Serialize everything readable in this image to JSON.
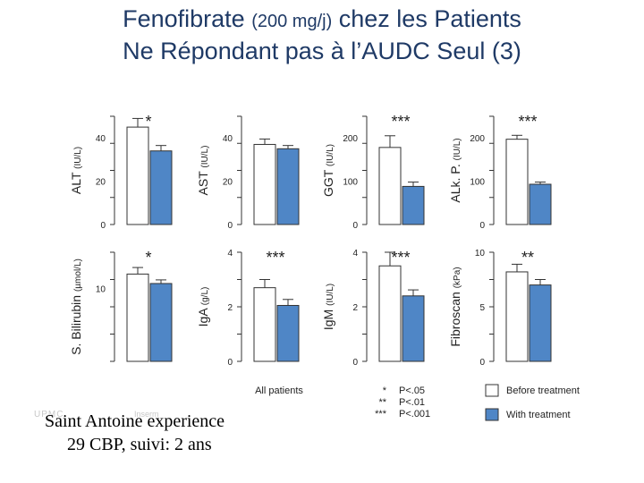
{
  "title": {
    "line1_a": "Fenofibrate",
    "line1_b": "(200 mg/j)",
    "line1_c": "chez les Patients",
    "line2": "Ne Répondant pas à l’AUDC Seul (3)"
  },
  "footer": {
    "line1": "Saint Antoine experience",
    "line2": "29 CBP, suivi: 2 ans"
  },
  "logos": {
    "left": "UPMC",
    "right": "Inserm"
  },
  "colors": {
    "before": "#ffffff",
    "with": "#4f86c6",
    "axis": "#333333",
    "text": "#222222"
  },
  "xlabel": "All patients",
  "legend": {
    "significance": [
      {
        "stars": "*",
        "label": "P<.05"
      },
      {
        "stars": "**",
        "label": "P<.01"
      },
      {
        "stars": "***",
        "label": "P<.001"
      }
    ],
    "series": [
      {
        "label": "Before treatment",
        "color": "#ffffff"
      },
      {
        "label": "With treatment",
        "color": "#4f86c6"
      }
    ]
  },
  "chart_data": [
    {
      "type": "bar",
      "ylabel": "ALT",
      "yunit": "(IU/L)",
      "yticks": [
        0,
        20,
        40
      ],
      "ylim": [
        0,
        50
      ],
      "series": [
        {
          "name": "Before treatment",
          "values": [
            45
          ]
        },
        {
          "name": "With treatment",
          "values": [
            34
          ]
        }
      ],
      "err": [
        4,
        2.5
      ],
      "sig": "*"
    },
    {
      "type": "bar",
      "ylabel": "AST",
      "yunit": "(IU/L)",
      "yticks": [
        0,
        20,
        40
      ],
      "ylim": [
        0,
        50
      ],
      "series": [
        {
          "name": "Before treatment",
          "values": [
            37
          ]
        },
        {
          "name": "With treatment",
          "values": [
            35
          ]
        }
      ],
      "err": [
        2.5,
        1.5
      ],
      "sig": ""
    },
    {
      "type": "bar",
      "ylabel": "GGT",
      "yunit": "(IU/L)",
      "yticks": [
        0,
        100,
        200
      ],
      "ylim": [
        0,
        250
      ],
      "series": [
        {
          "name": "Before treatment",
          "values": [
            178
          ]
        },
        {
          "name": "With treatment",
          "values": [
            88
          ]
        }
      ],
      "err": [
        27,
        10
      ],
      "sig": "***"
    },
    {
      "type": "bar",
      "ylabel": "ALk. P.",
      "yunit": "(IU/L)",
      "yticks": [
        0,
        100,
        200
      ],
      "ylim": [
        0,
        250
      ],
      "series": [
        {
          "name": "Before treatment",
          "values": [
            197
          ]
        },
        {
          "name": "With treatment",
          "values": [
            93
          ]
        }
      ],
      "err": [
        9,
        5
      ],
      "sig": "***"
    },
    {
      "type": "bar",
      "ylabel": "S. Bilirubin",
      "yunit": "(µmol/L)",
      "yticks": [
        10
      ],
      "ylim": [
        0,
        15
      ],
      "series": [
        {
          "name": "Before treatment",
          "values": [
            12
          ]
        },
        {
          "name": "With treatment",
          "values": [
            10.7
          ]
        }
      ],
      "err": [
        0.9,
        0.5
      ],
      "sig": "*"
    },
    {
      "type": "bar",
      "ylabel": "IgA",
      "yunit": "(g/L)",
      "yticks": [
        0,
        2,
        4
      ],
      "ylim": [
        0,
        4
      ],
      "series": [
        {
          "name": "Before treatment",
          "values": [
            2.7
          ]
        },
        {
          "name": "With treatment",
          "values": [
            2.05
          ]
        }
      ],
      "err": [
        0.3,
        0.22
      ],
      "sig": "***"
    },
    {
      "type": "bar",
      "ylabel": "IgM",
      "yunit": "(IU/L)",
      "yticks": [
        0,
        2,
        4
      ],
      "ylim": [
        0,
        4
      ],
      "series": [
        {
          "name": "Before treatment",
          "values": [
            3.5
          ]
        },
        {
          "name": "With treatment",
          "values": [
            2.4
          ]
        }
      ],
      "err": [
        0.5,
        0.22
      ],
      "sig": "***"
    },
    {
      "type": "bar",
      "ylabel": "Fibroscan",
      "yunit": "(kPa)",
      "yticks": [
        0,
        5,
        10
      ],
      "ylim": [
        0,
        10
      ],
      "series": [
        {
          "name": "Before treatment",
          "values": [
            8.2
          ]
        },
        {
          "name": "With treatment",
          "values": [
            7.0
          ]
        }
      ],
      "err": [
        0.7,
        0.5
      ],
      "sig": "**"
    }
  ]
}
